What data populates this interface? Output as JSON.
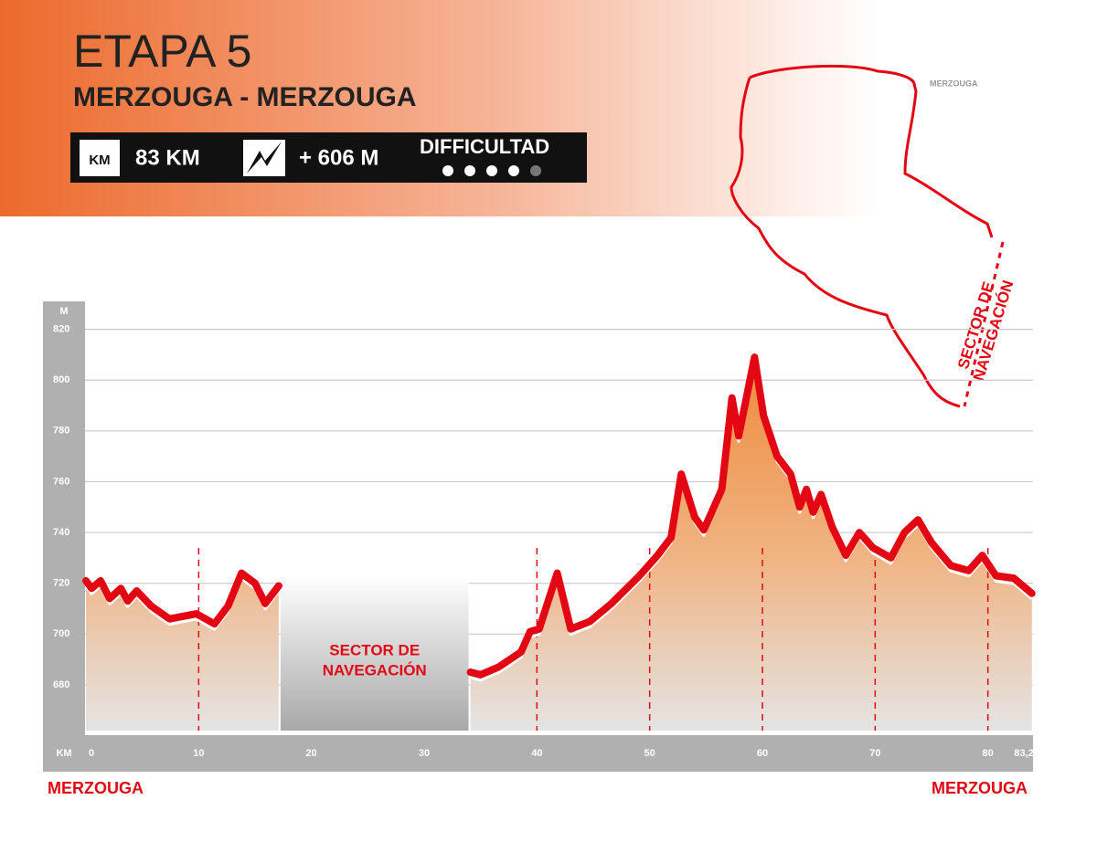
{
  "header": {
    "title": "ETAPA 5",
    "subtitle": "MERZOUGA - MERZOUGA",
    "km_icon": "KM",
    "distance": "83 KM",
    "elevation_gain": "+ 606 M",
    "difficulty_label": "DIFFICULTAD",
    "difficulty": 4,
    "difficulty_max": 5
  },
  "map": {
    "place": "MERZOUGA",
    "sector_label": [
      "SECTOR DE",
      "NAVEGACIÓN"
    ]
  },
  "chart_data": {
    "type": "line",
    "color": "#e30613",
    "y_label": "M",
    "x_label": "KM",
    "x": [
      0,
      0.5,
      1.3,
      2.1,
      3.1,
      3.7,
      4.5,
      5.8,
      7.4,
      9.8,
      11.4,
      12.6,
      13.8,
      15,
      15.9,
      17.1,
      25,
      34.1,
      35,
      36.6,
      38.6,
      39.4,
      40.2,
      41.8,
      43,
      44.7,
      46.6,
      49.1,
      50.7,
      51.9,
      52.8,
      54,
      54.8,
      56.4,
      57.3,
      57.9,
      59.3,
      60.1,
      61.3,
      62.5,
      63.3,
      63.9,
      64.5,
      65.2,
      66.2,
      67.4,
      68.6,
      69.8,
      71.4,
      72.6,
      73.8,
      75,
      76.7,
      78.3,
      79.5,
      80.7,
      82.3,
      83.9
    ],
    "values": [
      721,
      718,
      721,
      714,
      718,
      713,
      717,
      711,
      706,
      708,
      704,
      711,
      724,
      720,
      712,
      719,
      null,
      685,
      684,
      687,
      693,
      701,
      702,
      724,
      702,
      705,
      712,
      723,
      731,
      738,
      763,
      746,
      741,
      757,
      793,
      778,
      809,
      786,
      770,
      763,
      750,
      757,
      748,
      755,
      742,
      731,
      740,
      734,
      730,
      740,
      745,
      736,
      727,
      725,
      731,
      723,
      722,
      716
    ],
    "gap_label": [
      "SECTOR DE",
      "NAVEGACIÓN"
    ],
    "start_label": "MERZOUGA",
    "end_label": "MERZOUGA",
    "marker_km": [
      10,
      40,
      50,
      60,
      70,
      80
    ],
    "xlim": [
      0,
      84
    ],
    "ylim": [
      662,
      831
    ],
    "xticks": [
      0,
      10,
      20,
      30,
      40,
      50,
      60,
      70,
      80,
      {
        "value": 83.2,
        "label": "83,2"
      }
    ],
    "yticks": [
      680,
      700,
      720,
      740,
      760,
      780,
      800,
      820
    ],
    "grid": true
  }
}
